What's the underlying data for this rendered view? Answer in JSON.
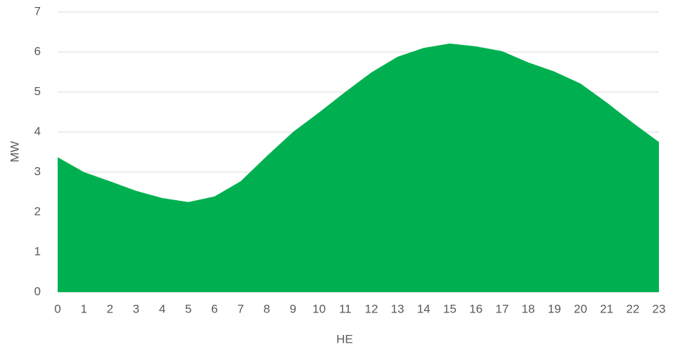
{
  "chart_data": {
    "type": "area",
    "xlabel": "HE",
    "ylabel": "MW",
    "x": [
      0,
      1,
      2,
      3,
      4,
      5,
      6,
      7,
      8,
      9,
      10,
      11,
      12,
      13,
      14,
      15,
      16,
      17,
      18,
      19,
      20,
      21,
      22,
      23
    ],
    "series": [
      {
        "color": "#00b050",
        "values": [
          3.37,
          3.0,
          2.77,
          2.53,
          2.35,
          2.25,
          2.39,
          2.77,
          3.4,
          4.0,
          4.49,
          5.0,
          5.49,
          5.88,
          6.1,
          6.21,
          6.14,
          6.02,
          5.74,
          5.51,
          5.21,
          4.74,
          4.23,
          3.75
        ]
      }
    ],
    "xlim": [
      0,
      23
    ],
    "xticks": [
      0,
      1,
      2,
      3,
      4,
      5,
      6,
      7,
      8,
      9,
      10,
      11,
      12,
      13,
      14,
      15,
      16,
      17,
      18,
      19,
      20,
      21,
      22,
      23
    ],
    "ylim": [
      0,
      7
    ],
    "yticks": [
      0,
      1,
      2,
      3,
      4,
      5,
      6,
      7
    ],
    "grid": true
  }
}
